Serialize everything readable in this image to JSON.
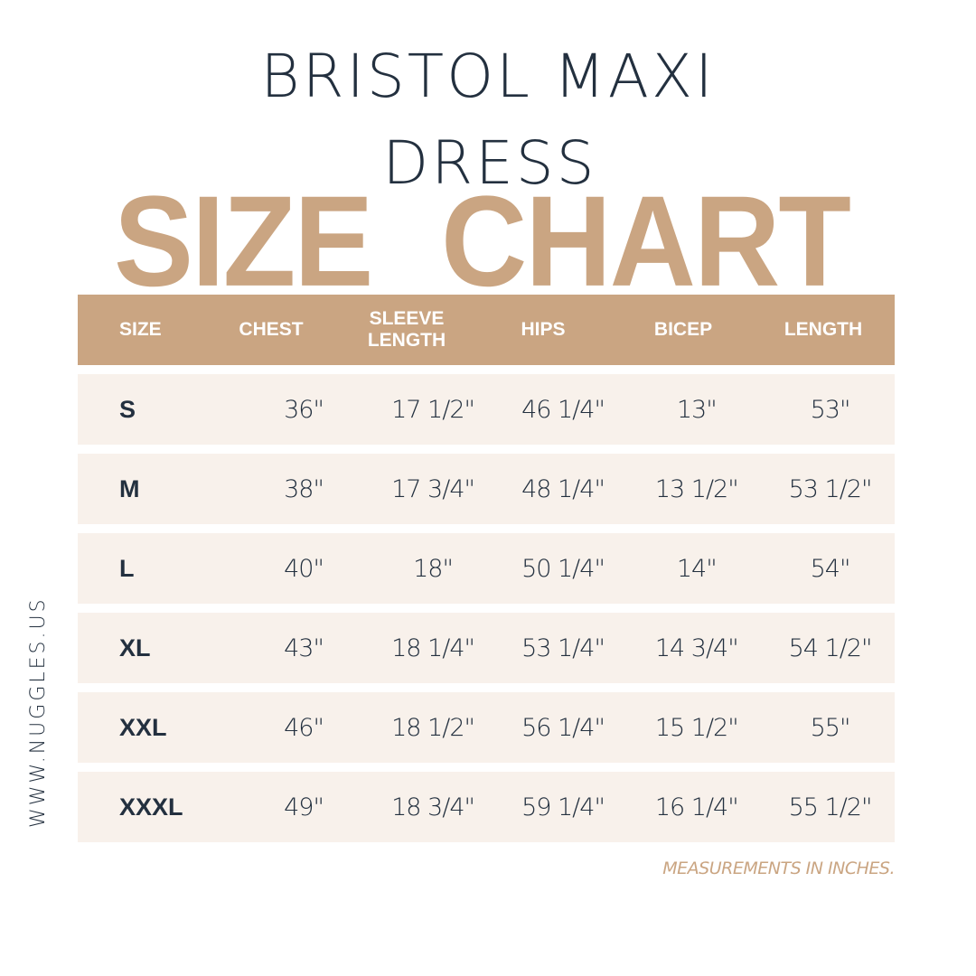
{
  "title": {
    "line1": "BRISTOL MAXI",
    "line2": "DRESS"
  },
  "heading": {
    "word1": "SIZE",
    "word2": "CHART"
  },
  "table": {
    "headers": {
      "size": "SIZE",
      "chest": "CHEST",
      "sleeve_line1": "SLEEVE",
      "sleeve_line2": "LENGTH",
      "hips": "HIPS",
      "bicep": "BICEP",
      "length": "LENGTH"
    },
    "rows": [
      {
        "size": "S",
        "chest": "36\"",
        "sleeve": "17 1/2\"",
        "hips": "46 1/4\"",
        "bicep": "13\"",
        "length": "53\""
      },
      {
        "size": "M",
        "chest": "38\"",
        "sleeve": "17 3/4\"",
        "hips": "48 1/4\"",
        "bicep": "13 1/2\"",
        "length": "53 1/2\""
      },
      {
        "size": "L",
        "chest": "40\"",
        "sleeve": "18\"",
        "hips": "50 1/4\"",
        "bicep": "14\"",
        "length": "54\""
      },
      {
        "size": "XL",
        "chest": "43\"",
        "sleeve": "18 1/4\"",
        "hips": "53 1/4\"",
        "bicep": "14 3/4\"",
        "length": "54 1/2\""
      },
      {
        "size": "XXL",
        "chest": "46\"",
        "sleeve": "18 1/2\"",
        "hips": "56 1/4\"",
        "bicep": "15 1/2\"",
        "length": "55\""
      },
      {
        "size": "XXXL",
        "chest": "49\"",
        "sleeve": "18 3/4\"",
        "hips": "59 1/4\"",
        "bicep": "16 1/4\"",
        "length": "55 1/2\""
      }
    ]
  },
  "footer": {
    "note": "MEASUREMENTS IN INCHES.",
    "website": "WWW.NUGGLES.US"
  },
  "colors": {
    "accent": "#caa582",
    "text_dark": "#23303f",
    "row_bg": "#f8f1eb",
    "background": "#ffffff"
  }
}
